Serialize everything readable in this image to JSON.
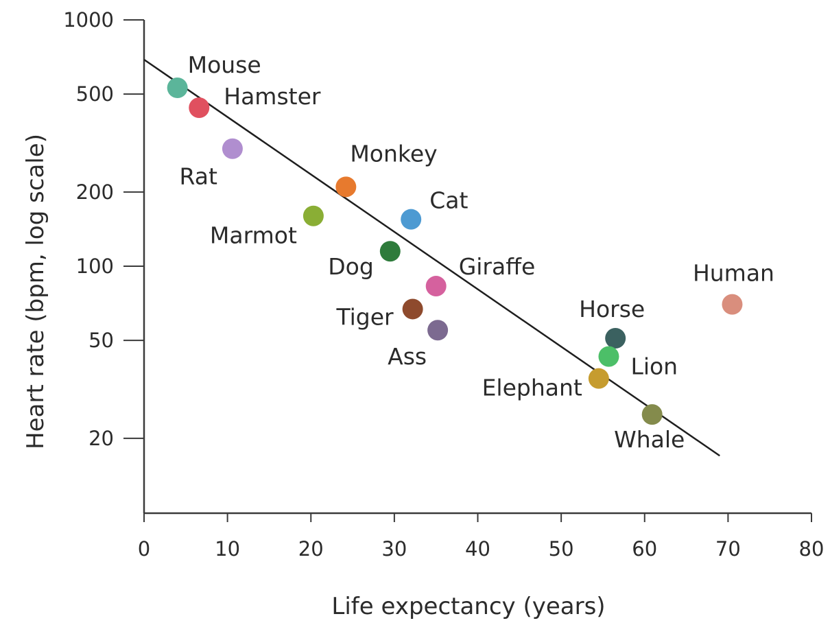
{
  "chart_data": {
    "type": "scatter",
    "title": "",
    "xlabel": "Life expectancy (years)",
    "ylabel": "Heart rate (bpm, log scale)",
    "xlim": [
      0,
      80
    ],
    "ylim": [
      10,
      1000
    ],
    "yscale": "log",
    "grid": false,
    "legend": "none",
    "x_ticks": [
      0,
      10,
      20,
      30,
      40,
      50,
      60,
      70,
      80
    ],
    "x_tick_labels": [
      "0",
      "10",
      "20",
      "30",
      "40",
      "50",
      "60",
      "70",
      "80"
    ],
    "y_ticks": [
      20,
      50,
      100,
      200,
      500,
      1000
    ],
    "y_tick_labels": [
      "20",
      "50",
      "100",
      "200",
      "500",
      "1000"
    ],
    "trend_line": {
      "x": [
        0,
        69
      ],
      "y": [
        690,
        17
      ]
    },
    "points": [
      {
        "label": "Mouse",
        "x": 4,
        "y": 530,
        "color": "#5bb59a"
      },
      {
        "label": "Hamster",
        "x": 6.6,
        "y": 440,
        "color": "#e0505f"
      },
      {
        "label": "Rat",
        "x": 10.6,
        "y": 300,
        "color": "#b08ecf"
      },
      {
        "label": "Monkey",
        "x": 24.2,
        "y": 210,
        "color": "#e77a2e"
      },
      {
        "label": "Marmot",
        "x": 20.3,
        "y": 160,
        "color": "#8aae35"
      },
      {
        "label": "Cat",
        "x": 32,
        "y": 155,
        "color": "#4d9ad2"
      },
      {
        "label": "Dog",
        "x": 29.5,
        "y": 115,
        "color": "#2e7b3b"
      },
      {
        "label": "Giraffe",
        "x": 35,
        "y": 83,
        "color": "#d5619e"
      },
      {
        "label": "Tiger",
        "x": 32.2,
        "y": 67,
        "color": "#8e4a2d"
      },
      {
        "label": "Ass",
        "x": 35.2,
        "y": 55,
        "color": "#7c6a90"
      },
      {
        "label": "Human",
        "x": 70.5,
        "y": 70,
        "color": "#d98e7d"
      },
      {
        "label": "Horse",
        "x": 56.5,
        "y": 51,
        "color": "#3b6160"
      },
      {
        "label": "Lion",
        "x": 55.7,
        "y": 43,
        "color": "#4cbf68"
      },
      {
        "label": "Elephant",
        "x": 54.5,
        "y": 35,
        "color": "#c69c2f"
      },
      {
        "label": "Whale",
        "x": 60.9,
        "y": 25,
        "color": "#848b4c"
      }
    ]
  }
}
